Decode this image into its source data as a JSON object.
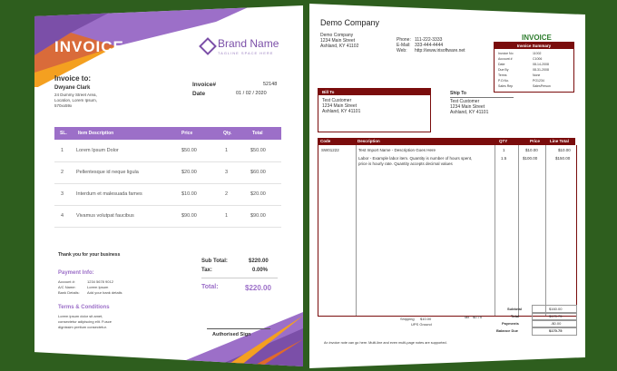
{
  "left_invoice": {
    "title": "INVOICE",
    "brand_name": "Brand Name",
    "brand_tagline": "TAGLINE SPACE HERE",
    "invoice_to_label": "Invoice to:",
    "client_name": "Dwyane Clark",
    "address_lines": [
      "24 Dummy Street Area,",
      "Location, Lorem Ipsum,",
      "570xx59x"
    ],
    "invoice_no_label": "Invoice#",
    "invoice_no": "52148",
    "date_label": "Date",
    "date": "01 / 02 / 2020",
    "columns": [
      "SL.",
      "Item Description",
      "Price",
      "Qty.",
      "Total"
    ],
    "items": [
      {
        "sl": "1",
        "desc": "Lorem Ipsum Dolor",
        "price": "$50.00",
        "qty": "1",
        "total": "$50.00"
      },
      {
        "sl": "2",
        "desc": "Pellentesque id neque ligula",
        "price": "$20.00",
        "qty": "3",
        "total": "$60.00"
      },
      {
        "sl": "3",
        "desc": "Interdum et malesuada fames",
        "price": "$10.00",
        "qty": "2",
        "total": "$20.00"
      },
      {
        "sl": "4",
        "desc": "Vivamus volutpat faucibus",
        "price": "$90.00",
        "qty": "1",
        "total": "$90.00"
      }
    ],
    "thanks": "Thank you for your business",
    "subtotal_label": "Sub Total:",
    "subtotal": "$220.00",
    "tax_label": "Tax:",
    "tax": "0.00%",
    "total_label": "Total:",
    "total": "$220.00",
    "payment_info_title": "Payment Info:",
    "payment_rows": [
      {
        "label": "Account #:",
        "value": "1234 5678 9012"
      },
      {
        "label": "A/C Name:",
        "value": "Lorem Ipsum"
      },
      {
        "label": "Bank Details:",
        "value": "Add your bank details"
      }
    ],
    "terms_title": "Terms & Conditions",
    "terms_lines": [
      "Lorem ipsum dolor sit amet,",
      "consectetur adipiscing elit. Fusce",
      "dignissim pretium consectetur."
    ],
    "sign_label": "Authorised Sign"
  },
  "right_invoice": {
    "company": "Demo Company",
    "company_addr": [
      "Demo Company",
      "1234 Main Street",
      "Ashland, KY 41102"
    ],
    "contact_labels": [
      "Phone:",
      "E-Mail:",
      "Web:"
    ],
    "contact_values": [
      "111-222-3333",
      "333-444-4444",
      "http://www.irisoftware.net"
    ],
    "invoice_heading": "INVOICE",
    "summary_title": "Invoice Summary",
    "summary_rows": [
      {
        "label": "Invoice No",
        "value": "11002"
      },
      {
        "label": "Account #",
        "value": "C1006"
      },
      {
        "label": "Date",
        "value": "08-14-2008"
      },
      {
        "label": "Due By",
        "value": "08-31-2008"
      },
      {
        "label": "Terms",
        "value": "None"
      },
      {
        "label": "P.O.No.",
        "value": "PO1234"
      },
      {
        "label": "Sales Rep",
        "value": "SalesPerson"
      }
    ],
    "bill_to_label": "Bill To",
    "bill_to_lines": [
      "Test Customer",
      "1234 Main Street",
      "Ashland, KY 41101"
    ],
    "ship_to_label": "Ship To",
    "ship_to_lines": [
      "Test Customer",
      "1234 Main Street",
      "Ashland, KY 41101"
    ],
    "columns": [
      "Code",
      "Description",
      "QTY",
      "Price",
      "Line Total"
    ],
    "items": [
      {
        "code": "SW01222",
        "desc": "Test Import Name - Description Goes Here",
        "desc2": "",
        "qty": "1",
        "price": "$10.00",
        "total": "$10.00"
      },
      {
        "code": "",
        "desc": "Labor - Example labor item. Quantity is number of hours spent,",
        "desc2": "price is hourly rate. Quantity accepts decimal values",
        "qty": "1.5",
        "price": "$100.00",
        "total": "$150.00"
      }
    ],
    "shipping_label": "Shipping",
    "shipping": "$10.00",
    "ship_via": "UPS Ground",
    "tax_label": "Tax",
    "tax": "$0.75",
    "totals": [
      {
        "label": "Subtotal",
        "value": "$160.00"
      },
      {
        "label": "Total",
        "value": "$170.75"
      },
      {
        "label": "Payments",
        "value": "-$0.00"
      },
      {
        "label": "Balance Due",
        "value": "$170.75"
      }
    ],
    "footnote": "An invoice note can go here. Multi-line and even multi-page notes are supported."
  },
  "colors": {
    "background": "#2e5e1e",
    "purple": "#9c6fc8",
    "maroon": "#7a0c0c",
    "green": "#2e7d2e"
  }
}
